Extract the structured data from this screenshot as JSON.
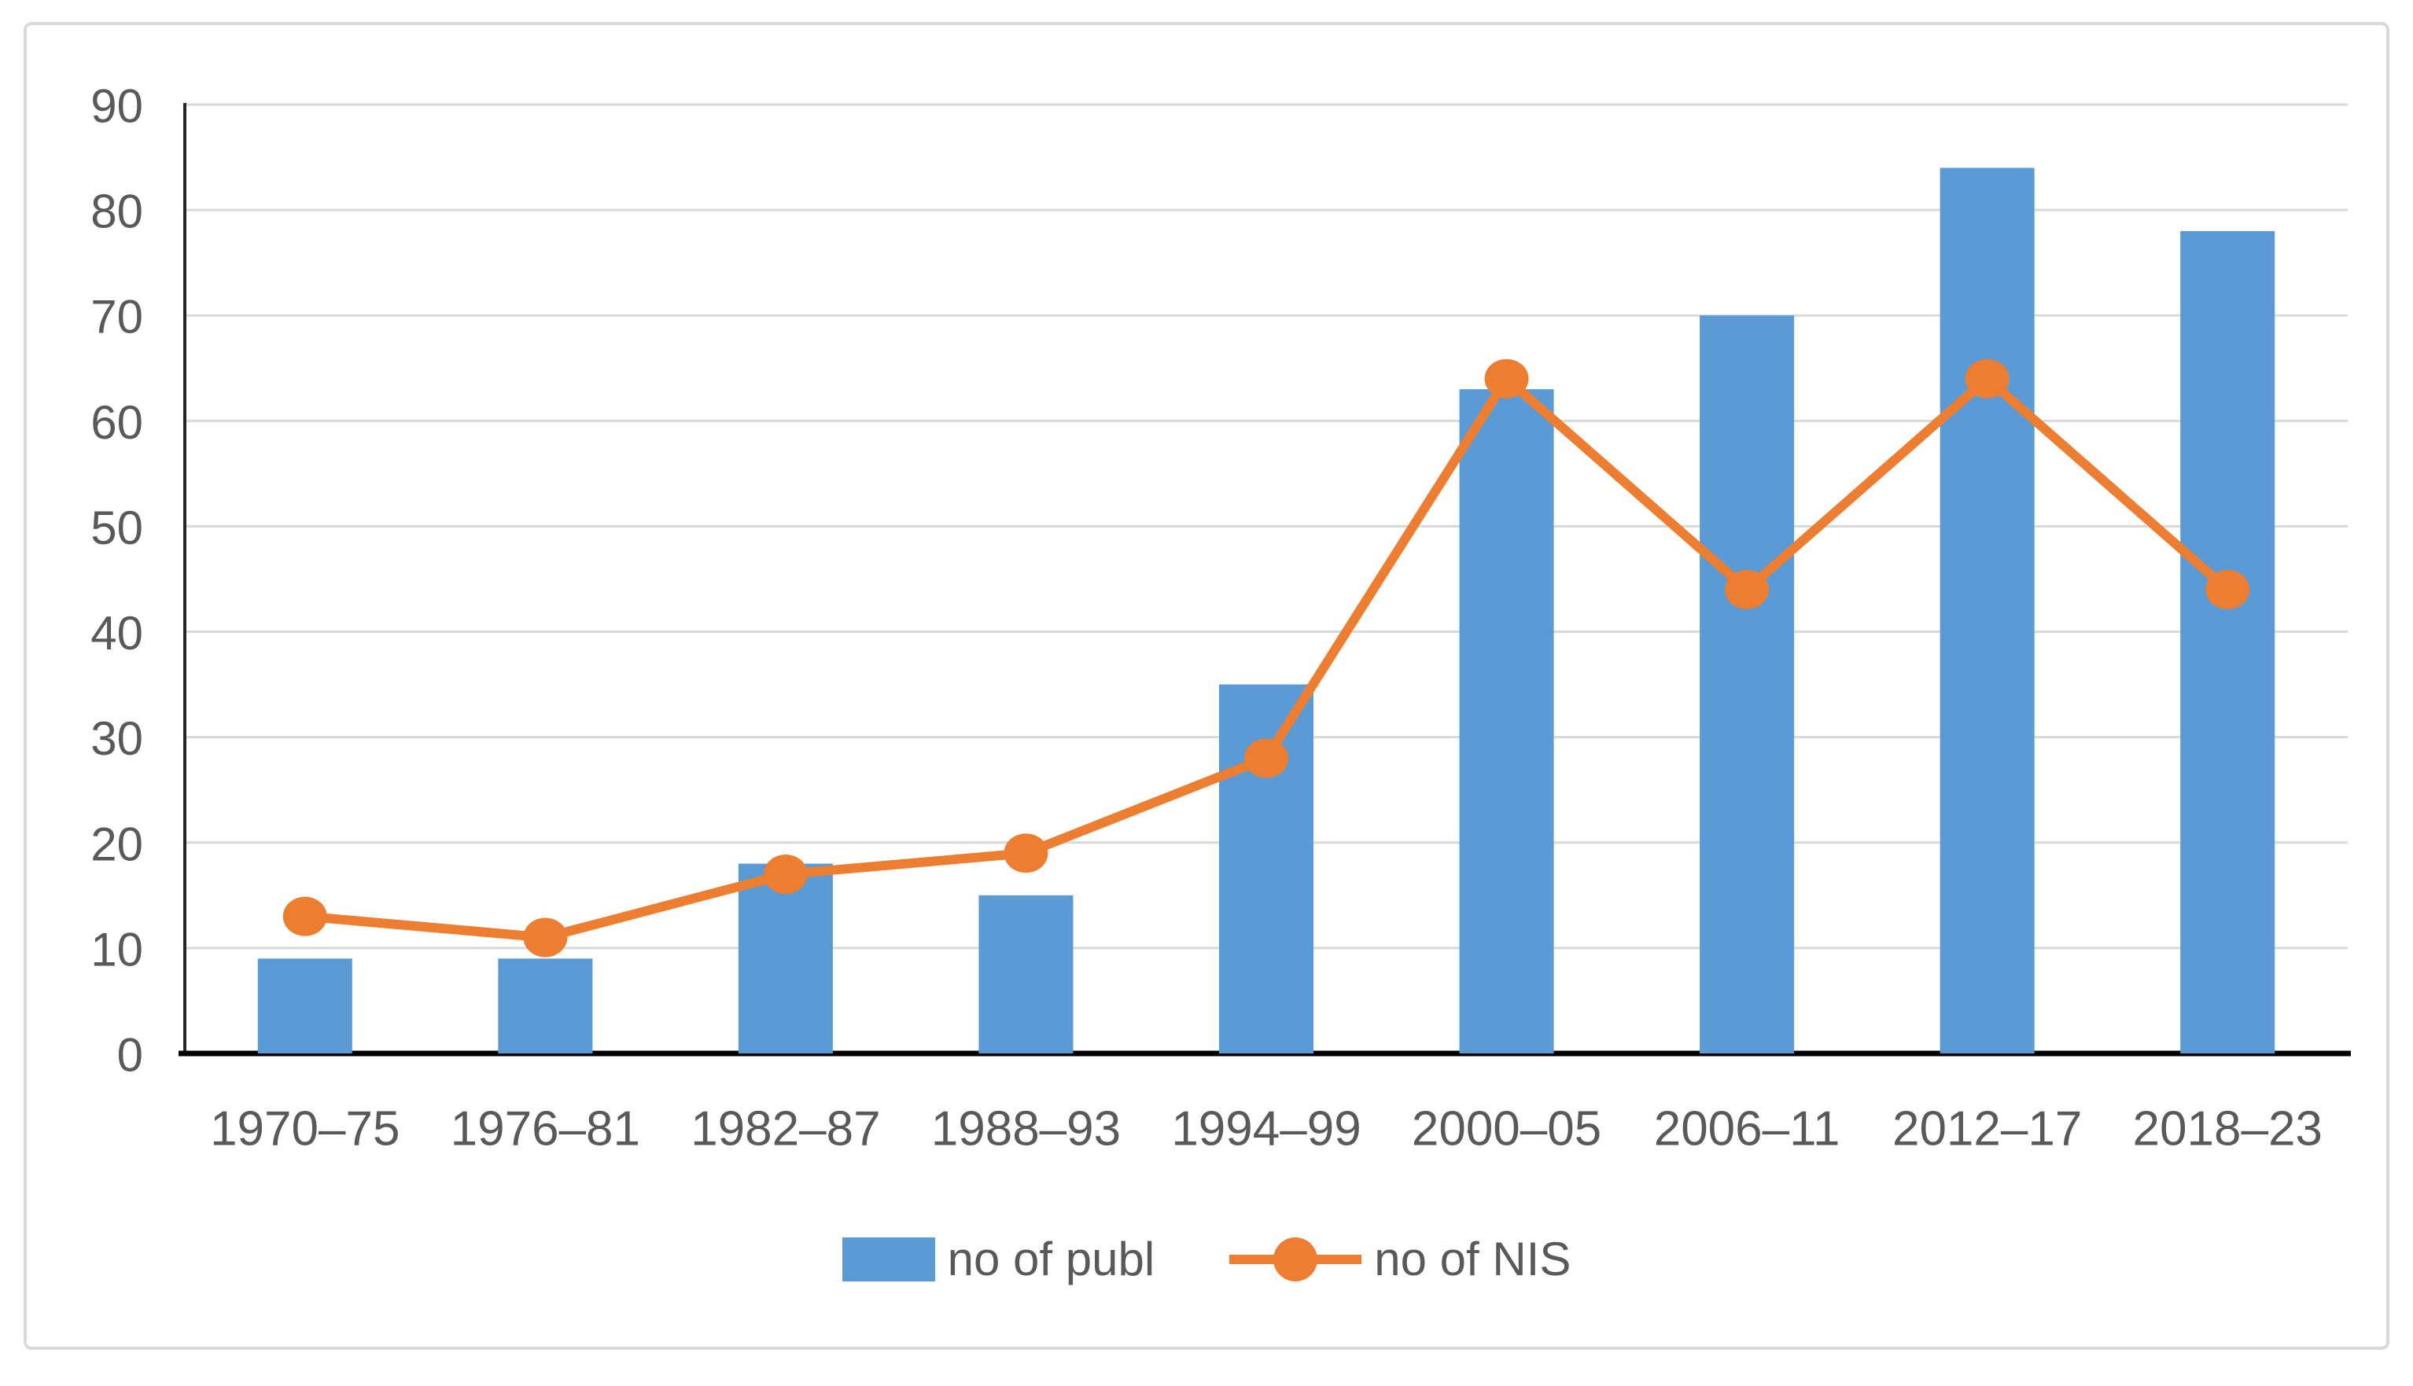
{
  "figure": {
    "background": "#ffffff",
    "frame_border_color": "#d9d9d9"
  },
  "chart_data": {
    "type": "bar",
    "combo_with_line": true,
    "title": "",
    "xlabel": "",
    "ylabel": "",
    "categories": [
      "1970–75",
      "1976–81",
      "1982–87",
      "1988–93",
      "1994–99",
      "2000–05",
      "2006–11",
      "2012–17",
      "2018–23"
    ],
    "series": [
      {
        "name": "no of publ",
        "kind": "bar",
        "color": "#5b9bd5",
        "values": [
          9,
          9,
          18,
          15,
          35,
          63,
          70,
          84,
          78
        ]
      },
      {
        "name": "no of NIS",
        "kind": "line",
        "color": "#ed7d31",
        "values": [
          13,
          11,
          17,
          19,
          28,
          64,
          44,
          64,
          44
        ]
      }
    ],
    "ylim": [
      0,
      90
    ],
    "yticks": [
      0,
      10,
      20,
      30,
      40,
      50,
      60,
      70,
      80,
      90
    ],
    "grid": true,
    "legend_position": "bottom",
    "axis_label_color": "#595959",
    "gridline_color": "#d9d9d9",
    "axis_line_color": "#000000",
    "y_axis_line_color": "#262626"
  }
}
